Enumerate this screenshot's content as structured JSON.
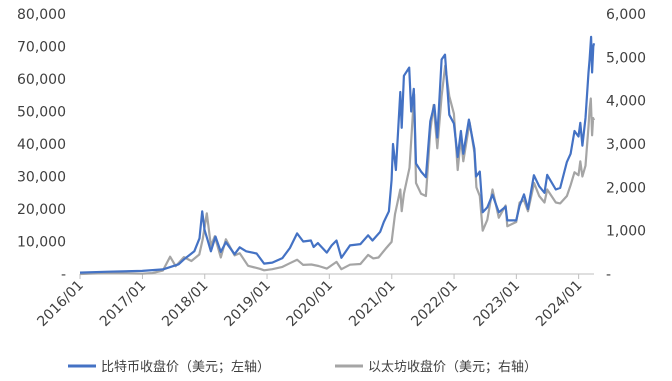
{
  "chart_data": {
    "type": "line",
    "x_tick_labels": [
      "2016/01",
      "2017/01",
      "2018/01",
      "2019/01",
      "2020/01",
      "2021/01",
      "2022/01",
      "2023/01",
      "2024/01"
    ],
    "y_left": {
      "range": [
        0,
        80000
      ],
      "tick_values": [
        0,
        10000,
        20000,
        30000,
        40000,
        50000,
        60000,
        70000,
        80000
      ],
      "tick_labels": [
        "-",
        "10,000",
        "20,000",
        "30,000",
        "40,000",
        "50,000",
        "60,000",
        "70,000",
        "80,000"
      ]
    },
    "y_right": {
      "range": [
        0,
        6000
      ],
      "tick_values": [
        0,
        1000,
        2000,
        3000,
        4000,
        5000,
        6000
      ],
      "tick_labels": [
        "-",
        "1,000",
        "2,000",
        "3,000",
        "4,000",
        "5,000",
        "6,000"
      ]
    },
    "x_range": [
      "2016-01-01",
      "2024-03-31"
    ],
    "grid": false,
    "legend_position": "bottom",
    "series": [
      {
        "name": "比特币收盘价（美元；左轴）",
        "axis": "left",
        "color": "#4472C4",
        "points": [
          [
            "2016-01-01",
            430
          ],
          [
            "2016-06-15",
            700
          ],
          [
            "2016-12-31",
            960
          ],
          [
            "2017-05-01",
            1400
          ],
          [
            "2017-08-01",
            3000
          ],
          [
            "2017-09-01",
            4500
          ],
          [
            "2017-11-01",
            7000
          ],
          [
            "2017-12-01",
            11000
          ],
          [
            "2017-12-17",
            19300
          ],
          [
            "2017-12-31",
            13500
          ],
          [
            "2018-01-15",
            11000
          ],
          [
            "2018-02-06",
            7000
          ],
          [
            "2018-03-05",
            11500
          ],
          [
            "2018-04-05",
            6800
          ],
          [
            "2018-05-05",
            9800
          ],
          [
            "2018-06-25",
            6100
          ],
          [
            "2018-07-25",
            8200
          ],
          [
            "2018-09-01",
            7000
          ],
          [
            "2018-11-01",
            6300
          ],
          [
            "2018-12-15",
            3200
          ],
          [
            "2019-02-01",
            3500
          ],
          [
            "2019-04-01",
            4900
          ],
          [
            "2019-05-15",
            8000
          ],
          [
            "2019-06-26",
            12500
          ],
          [
            "2019-08-01",
            10000
          ],
          [
            "2019-09-15",
            10300
          ],
          [
            "2019-10-01",
            8300
          ],
          [
            "2019-10-26",
            9500
          ],
          [
            "2019-12-17",
            6600
          ],
          [
            "2020-01-15",
            8800
          ],
          [
            "2020-02-12",
            10300
          ],
          [
            "2020-03-12",
            5000
          ],
          [
            "2020-05-01",
            8800
          ],
          [
            "2020-07-01",
            9200
          ],
          [
            "2020-08-15",
            11900
          ],
          [
            "2020-09-10",
            10300
          ],
          [
            "2020-10-25",
            13000
          ],
          [
            "2020-11-15",
            16000
          ],
          [
            "2020-12-15",
            19300
          ],
          [
            "2020-12-31",
            29000
          ],
          [
            "2021-01-08",
            40000
          ],
          [
            "2021-01-25",
            32000
          ],
          [
            "2021-02-20",
            56000
          ],
          [
            "2021-02-28",
            45000
          ],
          [
            "2021-03-13",
            61000
          ],
          [
            "2021-04-13",
            63500
          ],
          [
            "2021-04-25",
            50000
          ],
          [
            "2021-05-10",
            57000
          ],
          [
            "2021-05-23",
            34000
          ],
          [
            "2021-06-22",
            31500
          ],
          [
            "2021-07-20",
            29800
          ],
          [
            "2021-08-15",
            47000
          ],
          [
            "2021-09-07",
            52000
          ],
          [
            "2021-09-25",
            42000
          ],
          [
            "2021-10-20",
            66000
          ],
          [
            "2021-11-09",
            67500
          ],
          [
            "2021-12-04",
            49000
          ],
          [
            "2021-12-31",
            46300
          ],
          [
            "2022-01-22",
            36000
          ],
          [
            "2022-02-10",
            44000
          ],
          [
            "2022-02-24",
            37000
          ],
          [
            "2022-03-29",
            47500
          ],
          [
            "2022-04-30",
            38500
          ],
          [
            "2022-05-10",
            30000
          ],
          [
            "2022-06-01",
            31500
          ],
          [
            "2022-06-18",
            19000
          ],
          [
            "2022-07-15",
            20500
          ],
          [
            "2022-08-14",
            24400
          ],
          [
            "2022-09-20",
            19000
          ],
          [
            "2022-10-30",
            20700
          ],
          [
            "2022-11-09",
            16500
          ],
          [
            "2022-12-31",
            16500
          ],
          [
            "2023-01-20",
            21000
          ],
          [
            "2023-02-15",
            24500
          ],
          [
            "2023-03-10",
            20000
          ],
          [
            "2023-04-14",
            30400
          ],
          [
            "2023-05-15",
            27000
          ],
          [
            "2023-06-15",
            25000
          ],
          [
            "2023-07-01",
            30500
          ],
          [
            "2023-08-20",
            26000
          ],
          [
            "2023-09-15",
            26500
          ],
          [
            "2023-10-24",
            34500
          ],
          [
            "2023-11-15",
            37000
          ],
          [
            "2023-12-08",
            44000
          ],
          [
            "2023-12-31",
            42300
          ],
          [
            "2024-01-11",
            46500
          ],
          [
            "2024-01-23",
            39500
          ],
          [
            "2024-02-10",
            48000
          ],
          [
            "2024-02-28",
            62000
          ],
          [
            "2024-03-05",
            66000
          ],
          [
            "2024-03-14",
            73000
          ],
          [
            "2024-03-20",
            62000
          ],
          [
            "2024-03-27",
            70000
          ],
          [
            "2024-03-31",
            71000
          ]
        ]
      },
      {
        "name": "以太坊收盘价（美元；右轴）",
        "axis": "right",
        "color": "#A5A5A5",
        "points": [
          [
            "2016-01-01",
            1
          ],
          [
            "2016-03-15",
            12
          ],
          [
            "2016-06-17",
            20
          ],
          [
            "2016-12-31",
            8
          ],
          [
            "2017-03-01",
            20
          ],
          [
            "2017-05-01",
            80
          ],
          [
            "2017-06-12",
            400
          ],
          [
            "2017-07-15",
            180
          ],
          [
            "2017-09-01",
            390
          ],
          [
            "2017-10-15",
            300
          ],
          [
            "2017-11-30",
            450
          ],
          [
            "2017-12-20",
            800
          ],
          [
            "2018-01-13",
            1400
          ],
          [
            "2018-02-06",
            650
          ],
          [
            "2018-03-01",
            870
          ],
          [
            "2018-04-05",
            380
          ],
          [
            "2018-05-05",
            800
          ],
          [
            "2018-06-25",
            430
          ],
          [
            "2018-07-25",
            480
          ],
          [
            "2018-09-12",
            190
          ],
          [
            "2018-11-20",
            120
          ],
          [
            "2018-12-15",
            85
          ],
          [
            "2019-02-01",
            110
          ],
          [
            "2019-04-01",
            165
          ],
          [
            "2019-05-15",
            250
          ],
          [
            "2019-06-26",
            330
          ],
          [
            "2019-08-01",
            210
          ],
          [
            "2019-09-18",
            220
          ],
          [
            "2019-10-30",
            185
          ],
          [
            "2019-12-17",
            125
          ],
          [
            "2020-02-12",
            280
          ],
          [
            "2020-03-12",
            110
          ],
          [
            "2020-05-01",
            215
          ],
          [
            "2020-07-01",
            230
          ],
          [
            "2020-08-15",
            440
          ],
          [
            "2020-09-15",
            360
          ],
          [
            "2020-10-15",
            380
          ],
          [
            "2020-11-25",
            580
          ],
          [
            "2020-12-31",
            740
          ],
          [
            "2021-01-20",
            1380
          ],
          [
            "2021-02-20",
            1950
          ],
          [
            "2021-02-28",
            1450
          ],
          [
            "2021-03-13",
            1850
          ],
          [
            "2021-04-15",
            2450
          ],
          [
            "2021-05-12",
            4150
          ],
          [
            "2021-05-23",
            2100
          ],
          [
            "2021-06-22",
            1850
          ],
          [
            "2021-07-20",
            1800
          ],
          [
            "2021-08-15",
            3300
          ],
          [
            "2021-09-03",
            3900
          ],
          [
            "2021-09-25",
            2900
          ],
          [
            "2021-10-20",
            4100
          ],
          [
            "2021-11-10",
            4810
          ],
          [
            "2021-12-04",
            4100
          ],
          [
            "2021-12-31",
            3700
          ],
          [
            "2022-01-22",
            2400
          ],
          [
            "2022-02-10",
            3150
          ],
          [
            "2022-02-24",
            2600
          ],
          [
            "2022-04-02",
            3500
          ],
          [
            "2022-04-30",
            2800
          ],
          [
            "2022-05-12",
            2000
          ],
          [
            "2022-06-01",
            1800
          ],
          [
            "2022-06-18",
            1000
          ],
          [
            "2022-07-15",
            1250
          ],
          [
            "2022-08-14",
            1950
          ],
          [
            "2022-09-20",
            1300
          ],
          [
            "2022-10-30",
            1580
          ],
          [
            "2022-11-09",
            1100
          ],
          [
            "2022-12-31",
            1200
          ],
          [
            "2023-01-20",
            1650
          ],
          [
            "2023-02-15",
            1700
          ],
          [
            "2023-03-10",
            1450
          ],
          [
            "2023-04-15",
            2100
          ],
          [
            "2023-05-15",
            1800
          ],
          [
            "2023-06-15",
            1650
          ],
          [
            "2023-07-01",
            1950
          ],
          [
            "2023-08-20",
            1650
          ],
          [
            "2023-09-15",
            1630
          ],
          [
            "2023-10-24",
            1800
          ],
          [
            "2023-11-15",
            2050
          ],
          [
            "2023-12-08",
            2350
          ],
          [
            "2023-12-31",
            2280
          ],
          [
            "2024-01-11",
            2600
          ],
          [
            "2024-01-23",
            2250
          ],
          [
            "2024-02-10",
            2500
          ],
          [
            "2024-02-28",
            3400
          ],
          [
            "2024-03-05",
            3800
          ],
          [
            "2024-03-12",
            4050
          ],
          [
            "2024-03-20",
            3200
          ],
          [
            "2024-03-26",
            3600
          ],
          [
            "2024-03-31",
            3550
          ]
        ]
      }
    ]
  }
}
